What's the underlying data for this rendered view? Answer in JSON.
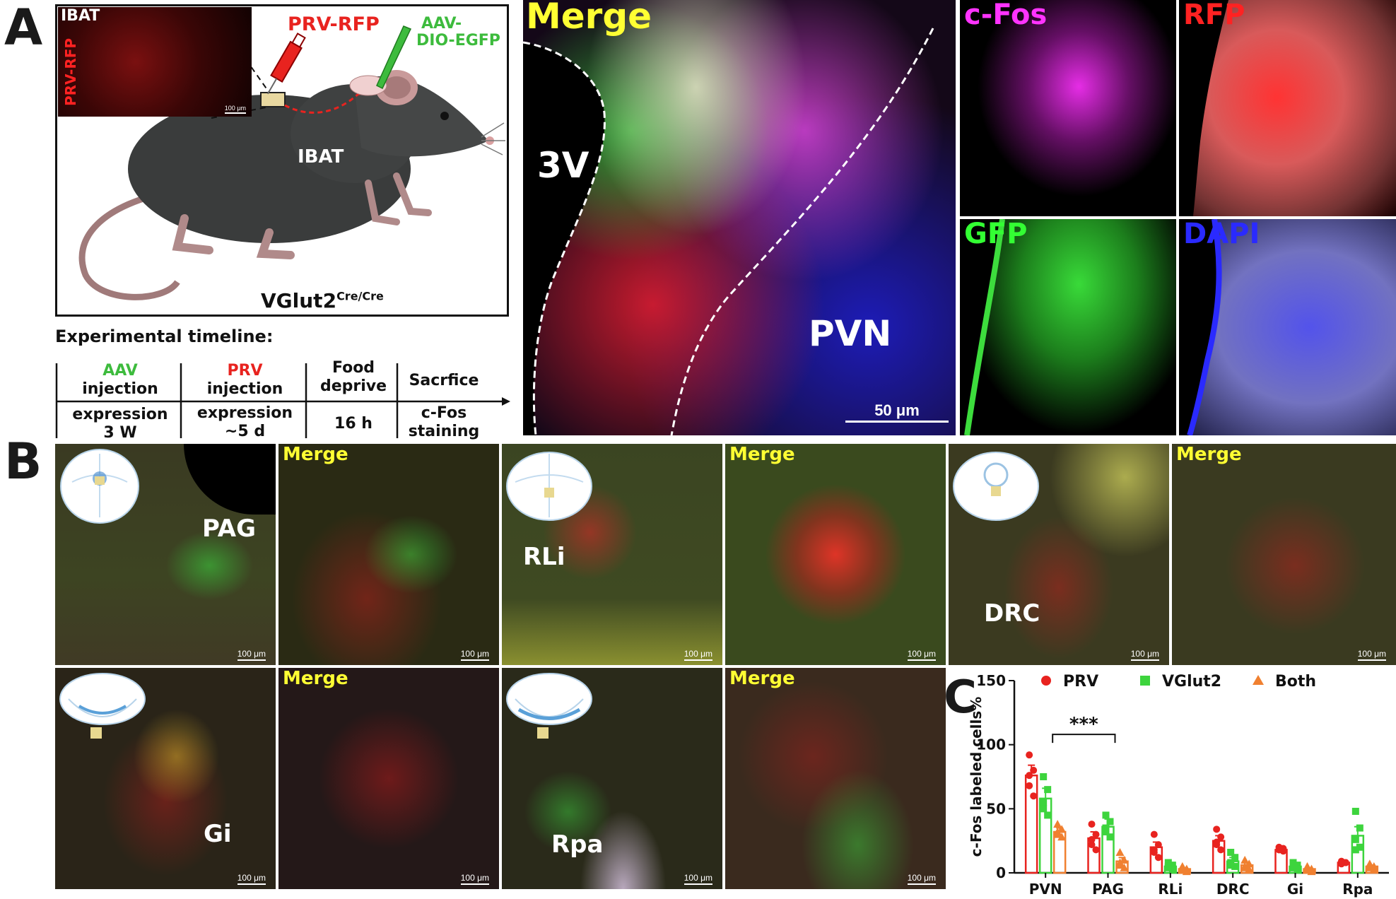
{
  "panels": {
    "a": "A",
    "b": "B",
    "c": "C"
  },
  "schematic": {
    "inset_title": "IBAT",
    "inset_vertical_label": "PRV-RFP",
    "inset_scale": "100 μm",
    "prv_label": "PRV-RFP",
    "aav_label_line1": "AAV-",
    "aav_label_line2": "DIO-EGFP",
    "ibat_label": "IBAT",
    "mouse_label": "VGlut2",
    "mouse_superscript": "Cre/Cre"
  },
  "timeline": {
    "title": "Experimental timeline:",
    "steps": [
      {
        "top_colored": "AAV",
        "top_rest": "injection",
        "bottom_line1": "expression",
        "bottom_line2": "3 W",
        "color": "#3dbb3d"
      },
      {
        "top_colored": "PRV",
        "top_rest": "injection",
        "bottom_line1": "expression",
        "bottom_line2": "~5 d",
        "color": "#e8231f"
      },
      {
        "top_line1": "Food",
        "top_line2": "deprive",
        "bottom_line1": "16 h",
        "bottom_line2": ""
      },
      {
        "top_line1": "Sacrfice",
        "top_line2": "",
        "bottom_line1": "c-Fos",
        "bottom_line2": "staining"
      }
    ]
  },
  "panel_a_images": {
    "merge_label": "Merge",
    "v3_label": "3V",
    "pvn_label": "PVN",
    "merge_scale": "50 μm",
    "cfos_label": "c-Fos",
    "rfp_label": "RFP",
    "gfp_label": "GFP",
    "dapi_label": "DAPI"
  },
  "panel_b_images": {
    "regions": [
      "PAG",
      "RLi",
      "DRC",
      "Gi",
      "Rpa"
    ],
    "merge_label": "Merge",
    "scale": "100 μm"
  },
  "colors": {
    "prv": "#e8231f",
    "vglut2": "#3dd43d",
    "both": "#f08030",
    "merge_label": "#ffff33",
    "cfos": "#ff33ff",
    "dapi": "#2020ff"
  },
  "chart_data": {
    "type": "bar",
    "ylabel": "c-Fos labeled cells%",
    "ylim": [
      0,
      150
    ],
    "yticks": [
      0,
      50,
      100,
      150
    ],
    "categories": [
      "PVN",
      "PAG",
      "RLi",
      "DRC",
      "Gi",
      "Rpa"
    ],
    "legend": [
      "PRV",
      "VGlut2",
      "Both"
    ],
    "legend_position": "top",
    "series": [
      {
        "name": "PRV",
        "values": [
          76,
          27,
          20,
          25,
          18,
          8
        ],
        "errors": [
          8,
          5,
          4,
          4,
          1,
          1
        ],
        "points": [
          [
            92,
            80,
            68,
            60,
            76
          ],
          [
            38,
            30,
            22,
            18,
            26
          ],
          [
            30,
            22,
            16,
            12,
            18
          ],
          [
            34,
            28,
            22,
            18,
            24
          ],
          [
            20,
            19,
            18,
            17,
            18
          ],
          [
            9,
            8,
            7,
            8,
            8
          ]
        ]
      },
      {
        "name": "VGlut2",
        "values": [
          58,
          36,
          5,
          9,
          5,
          29
        ],
        "errors": [
          8,
          6,
          1,
          3,
          1,
          7
        ],
        "points": [
          [
            75,
            65,
            55,
            45,
            50
          ],
          [
            45,
            40,
            35,
            28,
            32
          ],
          [
            8,
            6,
            4,
            3,
            5
          ],
          [
            16,
            12,
            8,
            5,
            6
          ],
          [
            8,
            6,
            4,
            3,
            4
          ],
          [
            48,
            35,
            26,
            20,
            18
          ]
        ]
      },
      {
        "name": "Both",
        "values": [
          32,
          9,
          3,
          6,
          3,
          5
        ],
        "errors": [
          3,
          3,
          1,
          2,
          1,
          1
        ],
        "points": [
          [
            38,
            34,
            30,
            28,
            32
          ],
          [
            16,
            10,
            6,
            4,
            8
          ],
          [
            5,
            3,
            2,
            1,
            3
          ],
          [
            10,
            7,
            5,
            3,
            4
          ],
          [
            5,
            3,
            2,
            1,
            3
          ],
          [
            7,
            5,
            4,
            3,
            5
          ]
        ]
      }
    ],
    "annotation": "***",
    "annotation_between": [
      "PVN",
      "PAG"
    ]
  }
}
